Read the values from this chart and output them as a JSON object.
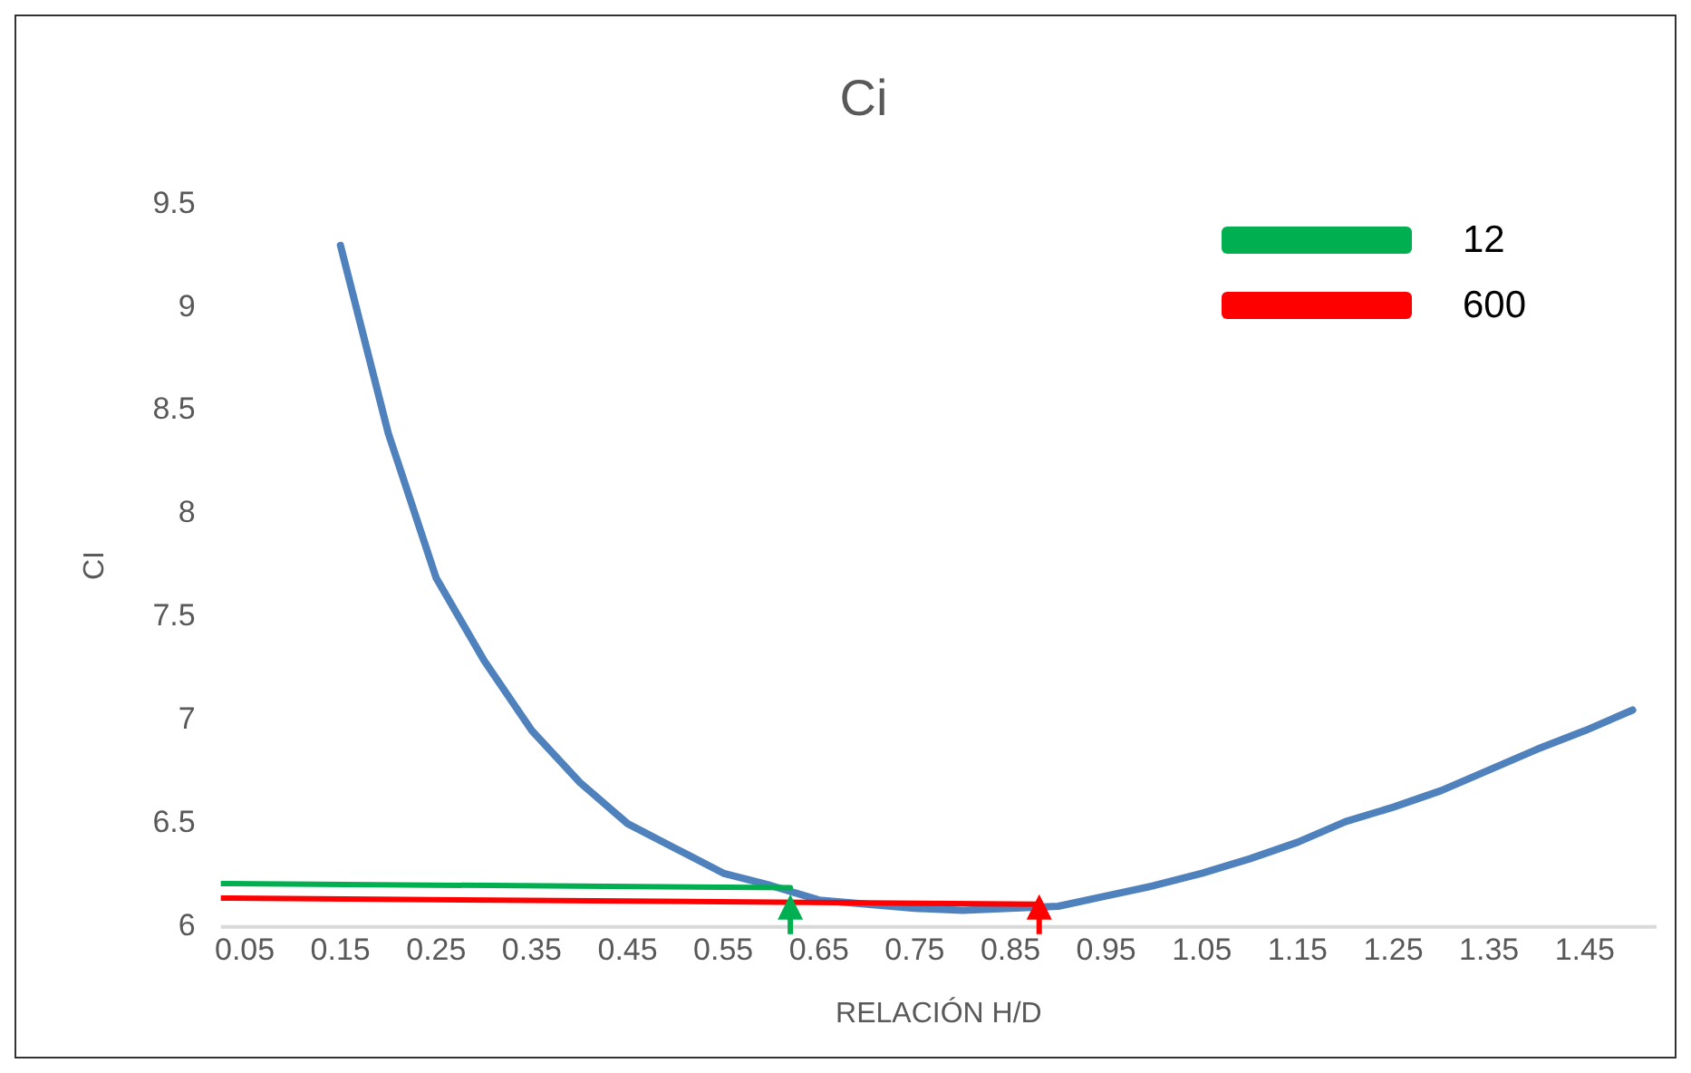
{
  "chart_data": {
    "type": "line",
    "title": "Ci",
    "xlabel": "RELACIÓN H/D",
    "ylabel": "CI",
    "x": [
      0.15,
      0.2,
      0.25,
      0.3,
      0.35,
      0.4,
      0.45,
      0.5,
      0.55,
      0.6,
      0.65,
      0.7,
      0.75,
      0.8,
      0.85,
      0.9,
      0.95,
      1.0,
      1.05,
      1.1,
      1.15,
      1.2,
      1.25,
      1.3,
      1.35,
      1.4,
      1.45,
      1.5
    ],
    "series": [
      {
        "color": "#4f81bd",
        "values": [
          9.3,
          8.39,
          7.69,
          7.29,
          6.95,
          6.7,
          6.5,
          6.38,
          6.26,
          6.2,
          6.13,
          6.11,
          6.09,
          6.08,
          6.09,
          6.1,
          6.15,
          6.2,
          6.26,
          6.33,
          6.41,
          6.51,
          6.58,
          6.66,
          6.76,
          6.86,
          6.95,
          7.05
        ]
      },
      {
        "name": "12",
        "color": "#00b050",
        "x": [
          0.025,
          0.62
        ],
        "values": [
          6.21,
          6.19
        ]
      },
      {
        "name": "600",
        "color": "#ff0000",
        "x": [
          0.025,
          0.88
        ],
        "values": [
          6.14,
          6.11
        ]
      }
    ],
    "legend": "top right",
    "xlim": [
      0.025,
      1.525
    ],
    "xticks": [
      0.05,
      0.15,
      0.25,
      0.35,
      0.45,
      0.55,
      0.65,
      0.75,
      0.85,
      0.95,
      1.05,
      1.15,
      1.25,
      1.35,
      1.45
    ],
    "ylim": [
      6,
      9.5
    ],
    "yticks": [
      6,
      6.5,
      7,
      7.5,
      8,
      8.5,
      9,
      9.5
    ],
    "grid": false
  }
}
